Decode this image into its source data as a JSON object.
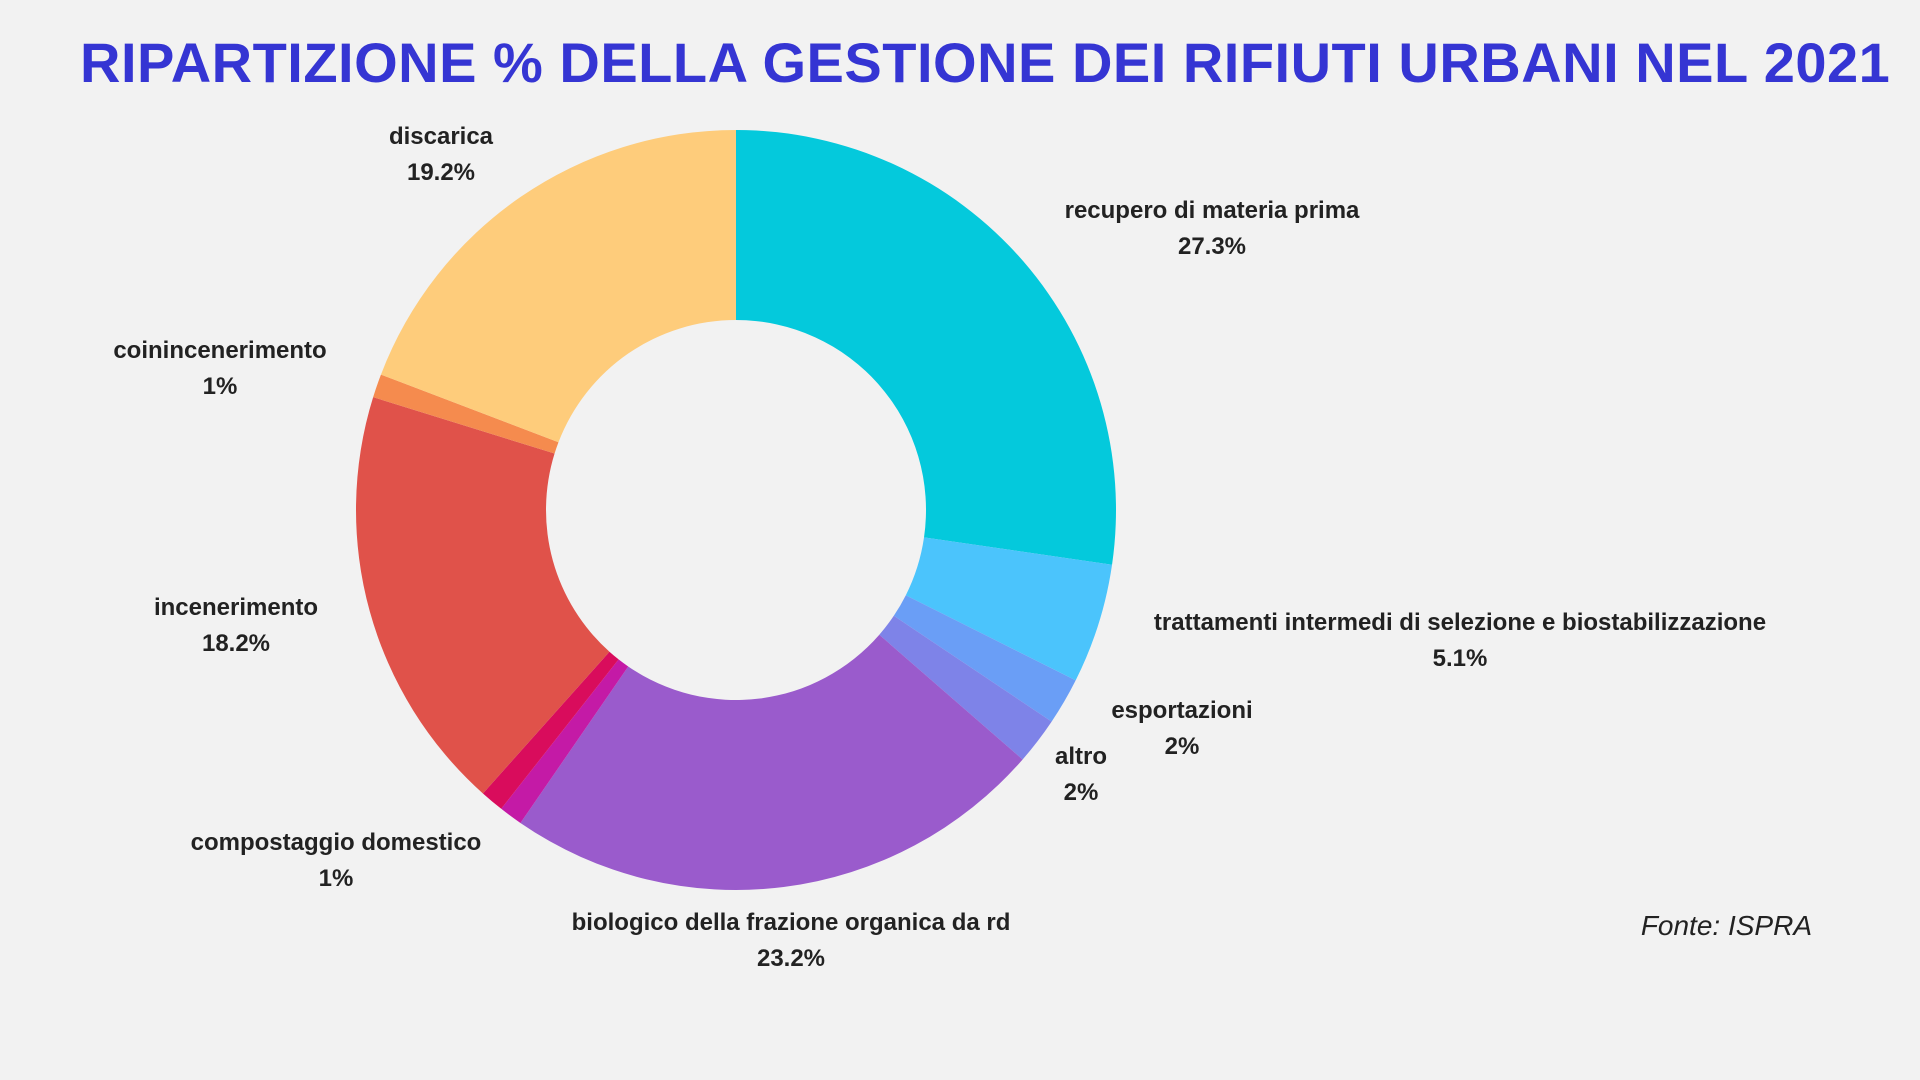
{
  "chart_data": {
    "type": "pie",
    "subtype": "donut",
    "title": "RIPARTIZIONE % DELLA GESTIONE DEI RIFIUTI URBANI NEL 2021",
    "unit": "%",
    "slices": [
      {
        "label": "recupero di materia prima",
        "value": 27.3,
        "display": "27.3%",
        "color": "#04c9dc"
      },
      {
        "label": "trattamenti intermedi di selezione e biostabilizzazione",
        "value": 5.1,
        "display": "5.1%",
        "color": "#4bc4fc"
      },
      {
        "label": "esportazioni",
        "value": 2,
        "display": "2%",
        "color": "#6a9ef6"
      },
      {
        "label": "altro",
        "value": 2,
        "display": "2%",
        "color": "#7e83e8"
      },
      {
        "label": "biologico della frazione organica da rd",
        "value": 23.2,
        "display": "23.2%",
        "color": "#9a5bcc"
      },
      {
        "label": "compostaggio domestico",
        "value": 1,
        "display": "1%",
        "color": "#c41aa6"
      },
      {
        "label": "",
        "value": 1,
        "display": "",
        "color": "#d90c5c"
      },
      {
        "label": "incenerimento",
        "value": 18.2,
        "display": "18.2%",
        "color": "#e0524a"
      },
      {
        "label": "coinincenerimento",
        "value": 1,
        "display": "1%",
        "color": "#f58b4e"
      },
      {
        "label": "discarica",
        "value": 19.2,
        "display": "19.2%",
        "color": "#fecc7b"
      }
    ]
  },
  "source": "Fonte: ISPRA"
}
